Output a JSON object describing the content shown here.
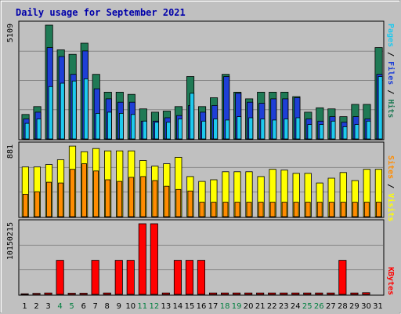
{
  "chart_data": {
    "type": "bar",
    "title": "Daily usage for September 2021",
    "days": [
      "1",
      "2",
      "3",
      "4",
      "5",
      "6",
      "7",
      "8",
      "9",
      "10",
      "11",
      "12",
      "13",
      "14",
      "15",
      "16",
      "17",
      "18",
      "19",
      "20",
      "21",
      "22",
      "23",
      "24",
      "25",
      "26",
      "27",
      "28",
      "29",
      "30",
      "31"
    ],
    "weekend_days": [
      "4",
      "5",
      "11",
      "12",
      "18",
      "19",
      "25",
      "26"
    ],
    "top_panel": {
      "max_label": "5109",
      "right_label": [
        "Pages",
        " / ",
        "Files",
        " / ",
        "Hits"
      ],
      "ymax": 5109,
      "series": [
        {
          "name": "Hits",
          "color": "#1f7a55",
          "values": [
            1100,
            1450,
            5109,
            4000,
            3800,
            4300,
            2900,
            2100,
            2100,
            2000,
            1350,
            1200,
            1250,
            1450,
            2800,
            1450,
            1850,
            2900,
            2100,
            1800,
            2100,
            2100,
            2100,
            1900,
            1200,
            1400,
            1350,
            1000,
            1550,
            1550,
            4100
          ]
        },
        {
          "name": "Files",
          "color": "#1e3fd6",
          "values": [
            900,
            1200,
            4100,
            3700,
            2900,
            3950,
            2250,
            1800,
            1650,
            1650,
            800,
            800,
            950,
            1050,
            1500,
            1200,
            1500,
            2800,
            2050,
            1650,
            1600,
            1800,
            1800,
            1850,
            900,
            800,
            1000,
            750,
            1000,
            900,
            2900
          ]
        },
        {
          "name": "Pages",
          "color": "#1ec9ee",
          "values": [
            700,
            900,
            2350,
            2500,
            2600,
            2700,
            1150,
            1200,
            1150,
            1100,
            800,
            750,
            750,
            900,
            2050,
            800,
            900,
            850,
            1000,
            950,
            900,
            850,
            900,
            950,
            650,
            650,
            800,
            550,
            650,
            800,
            2800
          ]
        }
      ]
    },
    "middle_panel": {
      "max_label": "881",
      "right_label": [
        "Sites",
        " / ",
        "Visits"
      ],
      "ymax": 881,
      "series": [
        {
          "name": "Visits",
          "color": "#ffff00",
          "values": [
            620,
            620,
            650,
            710,
            880,
            810,
            850,
            820,
            820,
            820,
            700,
            630,
            660,
            740,
            500,
            440,
            460,
            560,
            560,
            560,
            500,
            590,
            580,
            540,
            540,
            420,
            480,
            550,
            450,
            590,
            590
          ]
        },
        {
          "name": "Sites",
          "color": "#ff8c00",
          "values": [
            280,
            310,
            430,
            420,
            590,
            660,
            570,
            460,
            440,
            490,
            500,
            450,
            380,
            340,
            320,
            180,
            180,
            180,
            180,
            180,
            180,
            180,
            180,
            180,
            180,
            180,
            180,
            180,
            180,
            180,
            180
          ]
        }
      ]
    },
    "bottom_panel": {
      "max_label": "10150215",
      "right_label": [
        "KBytes"
      ],
      "ymax": 10150215,
      "series": [
        {
          "name": "KBytes",
          "color": "#ff0000",
          "values": [
            90000,
            150000,
            200000,
            4900000,
            170000,
            170000,
            4900000,
            200000,
            4900000,
            4900000,
            10150215,
            10150215,
            200000,
            4900000,
            4900000,
            4900000,
            200000,
            200000,
            200000,
            200000,
            200000,
            200000,
            200000,
            200000,
            200000,
            200000,
            200000,
            4900000,
            200000,
            250000,
            0
          ]
        }
      ]
    },
    "colors": {
      "background": "#c0c0c0",
      "plot_bg": "#c0c0c0",
      "grid": "#888888",
      "title": "#0000aa",
      "axis_text": "#000000",
      "weekend_text": "#007f3f",
      "pages": "#1ec9ee",
      "files": "#1e3fd6",
      "hits": "#1f7a55",
      "sites": "#ff8c00",
      "visits": "#ffff00",
      "kbytes": "#ff0000"
    }
  }
}
